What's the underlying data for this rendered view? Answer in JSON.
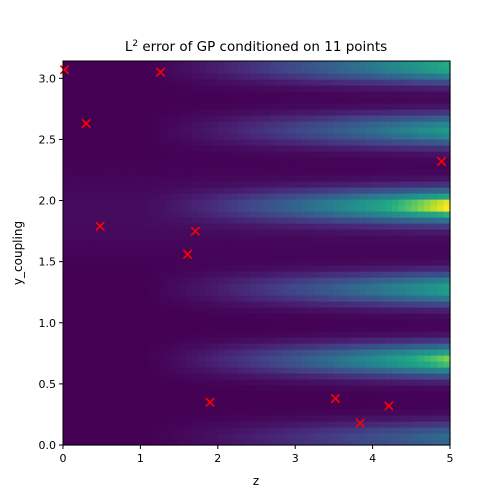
{
  "chart_data": {
    "type": "heatmap",
    "title": "L² error of GP conditioned on 11 points",
    "title_base": "L",
    "title_sup": "2",
    "title_rest": " error of GP conditioned on 11 points",
    "xlabel": "z",
    "ylabel": "y_coupling",
    "xlim": [
      0,
      5
    ],
    "ylim": [
      0,
      3.14159
    ],
    "xticks": [
      0,
      1,
      2,
      3,
      4,
      5
    ],
    "xtick_labels": [
      "0",
      "1",
      "2",
      "3",
      "4",
      "5"
    ],
    "yticks": [
      0.0,
      0.5,
      1.0,
      1.5,
      2.0,
      2.5,
      3.0
    ],
    "ytick_labels": [
      "0.0",
      "0.5",
      "1.0",
      "1.5",
      "2.0",
      "2.5",
      "3.0"
    ],
    "colormap": "viridis",
    "band_centers_y": [
      0.06,
      0.7,
      1.28,
      1.96,
      2.58,
      3.1
    ],
    "band_peak_values": [
      0.45,
      0.9,
      0.72,
      1.0,
      0.68,
      0.78
    ],
    "points": [
      {
        "x": 0.02,
        "y": 3.07
      },
      {
        "x": 1.26,
        "y": 3.05
      },
      {
        "x": 0.3,
        "y": 2.63
      },
      {
        "x": 4.89,
        "y": 2.32
      },
      {
        "x": 0.48,
        "y": 1.79
      },
      {
        "x": 1.71,
        "y": 1.75
      },
      {
        "x": 1.61,
        "y": 1.56
      },
      {
        "x": 1.9,
        "y": 0.35
      },
      {
        "x": 3.52,
        "y": 0.38
      },
      {
        "x": 4.21,
        "y": 0.32
      },
      {
        "x": 3.84,
        "y": 0.18
      }
    ],
    "marker_color": "#ff0000"
  }
}
